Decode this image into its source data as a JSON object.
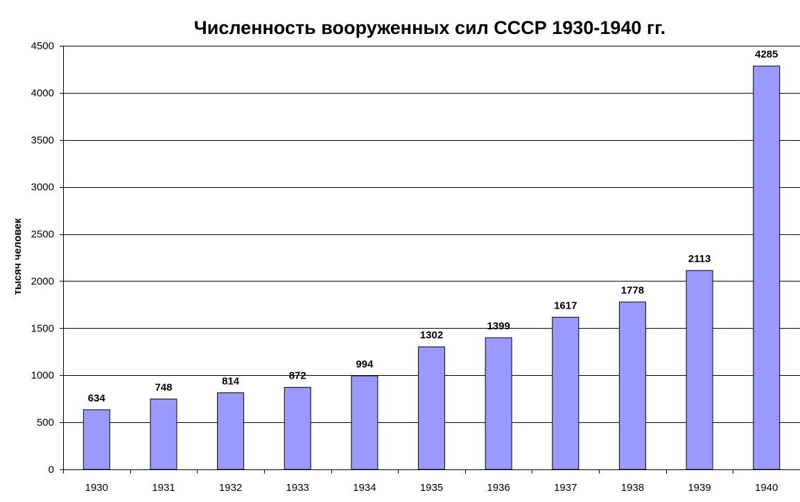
{
  "chart_data": {
    "type": "bar",
    "title": "Численность вооруженных сил СССР 1930-1940 гг.",
    "xlabel": "",
    "ylabel": "тысяч человек",
    "categories": [
      "1930",
      "1931",
      "1932",
      "1933",
      "1934",
      "1935",
      "1936",
      "1937",
      "1938",
      "1939",
      "1940"
    ],
    "values": [
      634,
      748,
      814,
      872,
      994,
      1302,
      1399,
      1617,
      1778,
      2113,
      4285
    ],
    "data_labels": [
      "634",
      "748",
      "814",
      "872",
      "994",
      "1302",
      "1399",
      "1617",
      "1778",
      "2113",
      "4285"
    ],
    "ylim": [
      0,
      4500
    ],
    "yticks": [
      0,
      500,
      1000,
      1500,
      2000,
      2500,
      3000,
      3500,
      4000,
      4500
    ],
    "ytick_labels": [
      "0",
      "500",
      "1000",
      "1500",
      "2000",
      "2500",
      "3000",
      "3500",
      "4000",
      "4500"
    ],
    "grid": true,
    "legend": "none",
    "colors": {
      "bar_fill": "#9999ff",
      "bar_stroke": "#000000",
      "grid": "#000000",
      "axis": "#000000",
      "background": "#ffffff"
    }
  }
}
